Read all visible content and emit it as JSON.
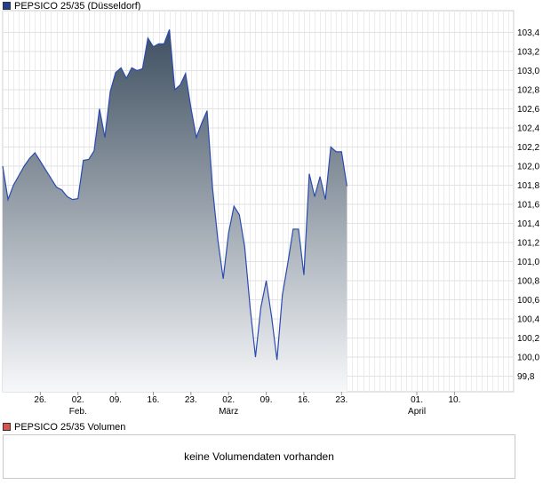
{
  "legend": {
    "price_label": "PEPSICO 25/35 (Düsseldorf)",
    "price_color": "#1f3f8f",
    "volume_label": "PEPSICO 25/35 Volumen",
    "volume_color": "#d9534f"
  },
  "volume": {
    "message": "keine Volumendaten vorhanden"
  },
  "chart_data": {
    "type": "area",
    "title": "",
    "xlabel": "",
    "ylabel": "",
    "ylim": [
      99.6,
      103.5
    ],
    "y_ticks": [
      "103,4",
      "103,2",
      "103,0",
      "102,8",
      "102,6",
      "102,4",
      "102,2",
      "102,0",
      "101,8",
      "101,6",
      "101,4",
      "101,2",
      "101,0",
      "100,8",
      "100,6",
      "100,4",
      "100,2",
      "100,0",
      "99,8"
    ],
    "x_ticks": [
      {
        "day": 20,
        "label": "26."
      },
      {
        "day": 27,
        "label": "02.",
        "sub": "Feb."
      },
      {
        "day": 34,
        "label": "09."
      },
      {
        "day": 41,
        "label": "16."
      },
      {
        "day": 48,
        "label": "23."
      },
      {
        "day": 55,
        "label": "02.",
        "sub": "März"
      },
      {
        "day": 62,
        "label": "09."
      },
      {
        "day": 69,
        "label": "16."
      },
      {
        "day": 76,
        "label": "23."
      },
      {
        "day": 90,
        "label": "01.",
        "sub": "April"
      },
      {
        "day": 97,
        "label": "10."
      }
    ],
    "x_range": [
      13,
      108
    ],
    "grid": true,
    "line_color": "#2a4bb0",
    "fill_top_color": "#3e4f60",
    "fill_bottom_color": "#f7f8fa",
    "series": [
      {
        "values": [
          [
            13,
            102.0
          ],
          [
            14,
            101.65
          ],
          [
            15,
            101.8
          ],
          [
            16,
            101.9
          ],
          [
            17,
            102.0
          ],
          [
            18,
            102.08
          ],
          [
            19,
            102.14
          ],
          [
            20,
            102.05
          ],
          [
            21,
            101.96
          ],
          [
            22,
            101.87
          ],
          [
            23,
            101.78
          ],
          [
            24,
            101.75
          ],
          [
            25,
            101.68
          ],
          [
            26,
            101.65
          ],
          [
            27,
            101.66
          ],
          [
            28,
            102.06
          ],
          [
            29,
            102.07
          ],
          [
            30,
            102.16
          ],
          [
            31,
            102.6
          ],
          [
            32,
            102.3
          ],
          [
            33,
            102.78
          ],
          [
            34,
            102.98
          ],
          [
            35,
            103.03
          ],
          [
            36,
            102.92
          ],
          [
            37,
            103.03
          ],
          [
            38,
            103.0
          ],
          [
            39,
            103.02
          ],
          [
            40,
            103.34
          ],
          [
            41,
            103.25
          ],
          [
            42,
            103.28
          ],
          [
            43,
            103.28
          ],
          [
            44,
            103.43
          ],
          [
            45,
            102.8
          ],
          [
            46,
            102.85
          ],
          [
            47,
            102.97
          ],
          [
            48,
            102.61
          ],
          [
            49,
            102.3
          ],
          [
            50,
            102.45
          ],
          [
            51,
            102.58
          ],
          [
            52,
            101.78
          ],
          [
            53,
            101.23
          ],
          [
            54,
            100.82
          ],
          [
            55,
            101.3
          ],
          [
            56,
            101.58
          ],
          [
            57,
            101.49
          ],
          [
            58,
            101.15
          ],
          [
            59,
            100.52
          ],
          [
            60,
            100.0
          ],
          [
            61,
            100.52
          ],
          [
            62,
            100.8
          ],
          [
            63,
            100.42
          ],
          [
            64,
            99.97
          ],
          [
            65,
            100.65
          ],
          [
            66,
            100.98
          ],
          [
            67,
            101.34
          ],
          [
            68,
            101.34
          ],
          [
            69,
            100.86
          ],
          [
            70,
            101.92
          ],
          [
            71,
            101.68
          ],
          [
            72,
            101.89
          ],
          [
            73,
            101.65
          ],
          [
            74,
            102.2
          ],
          [
            75,
            102.15
          ],
          [
            76,
            102.15
          ],
          [
            77,
            101.79
          ]
        ]
      }
    ]
  }
}
